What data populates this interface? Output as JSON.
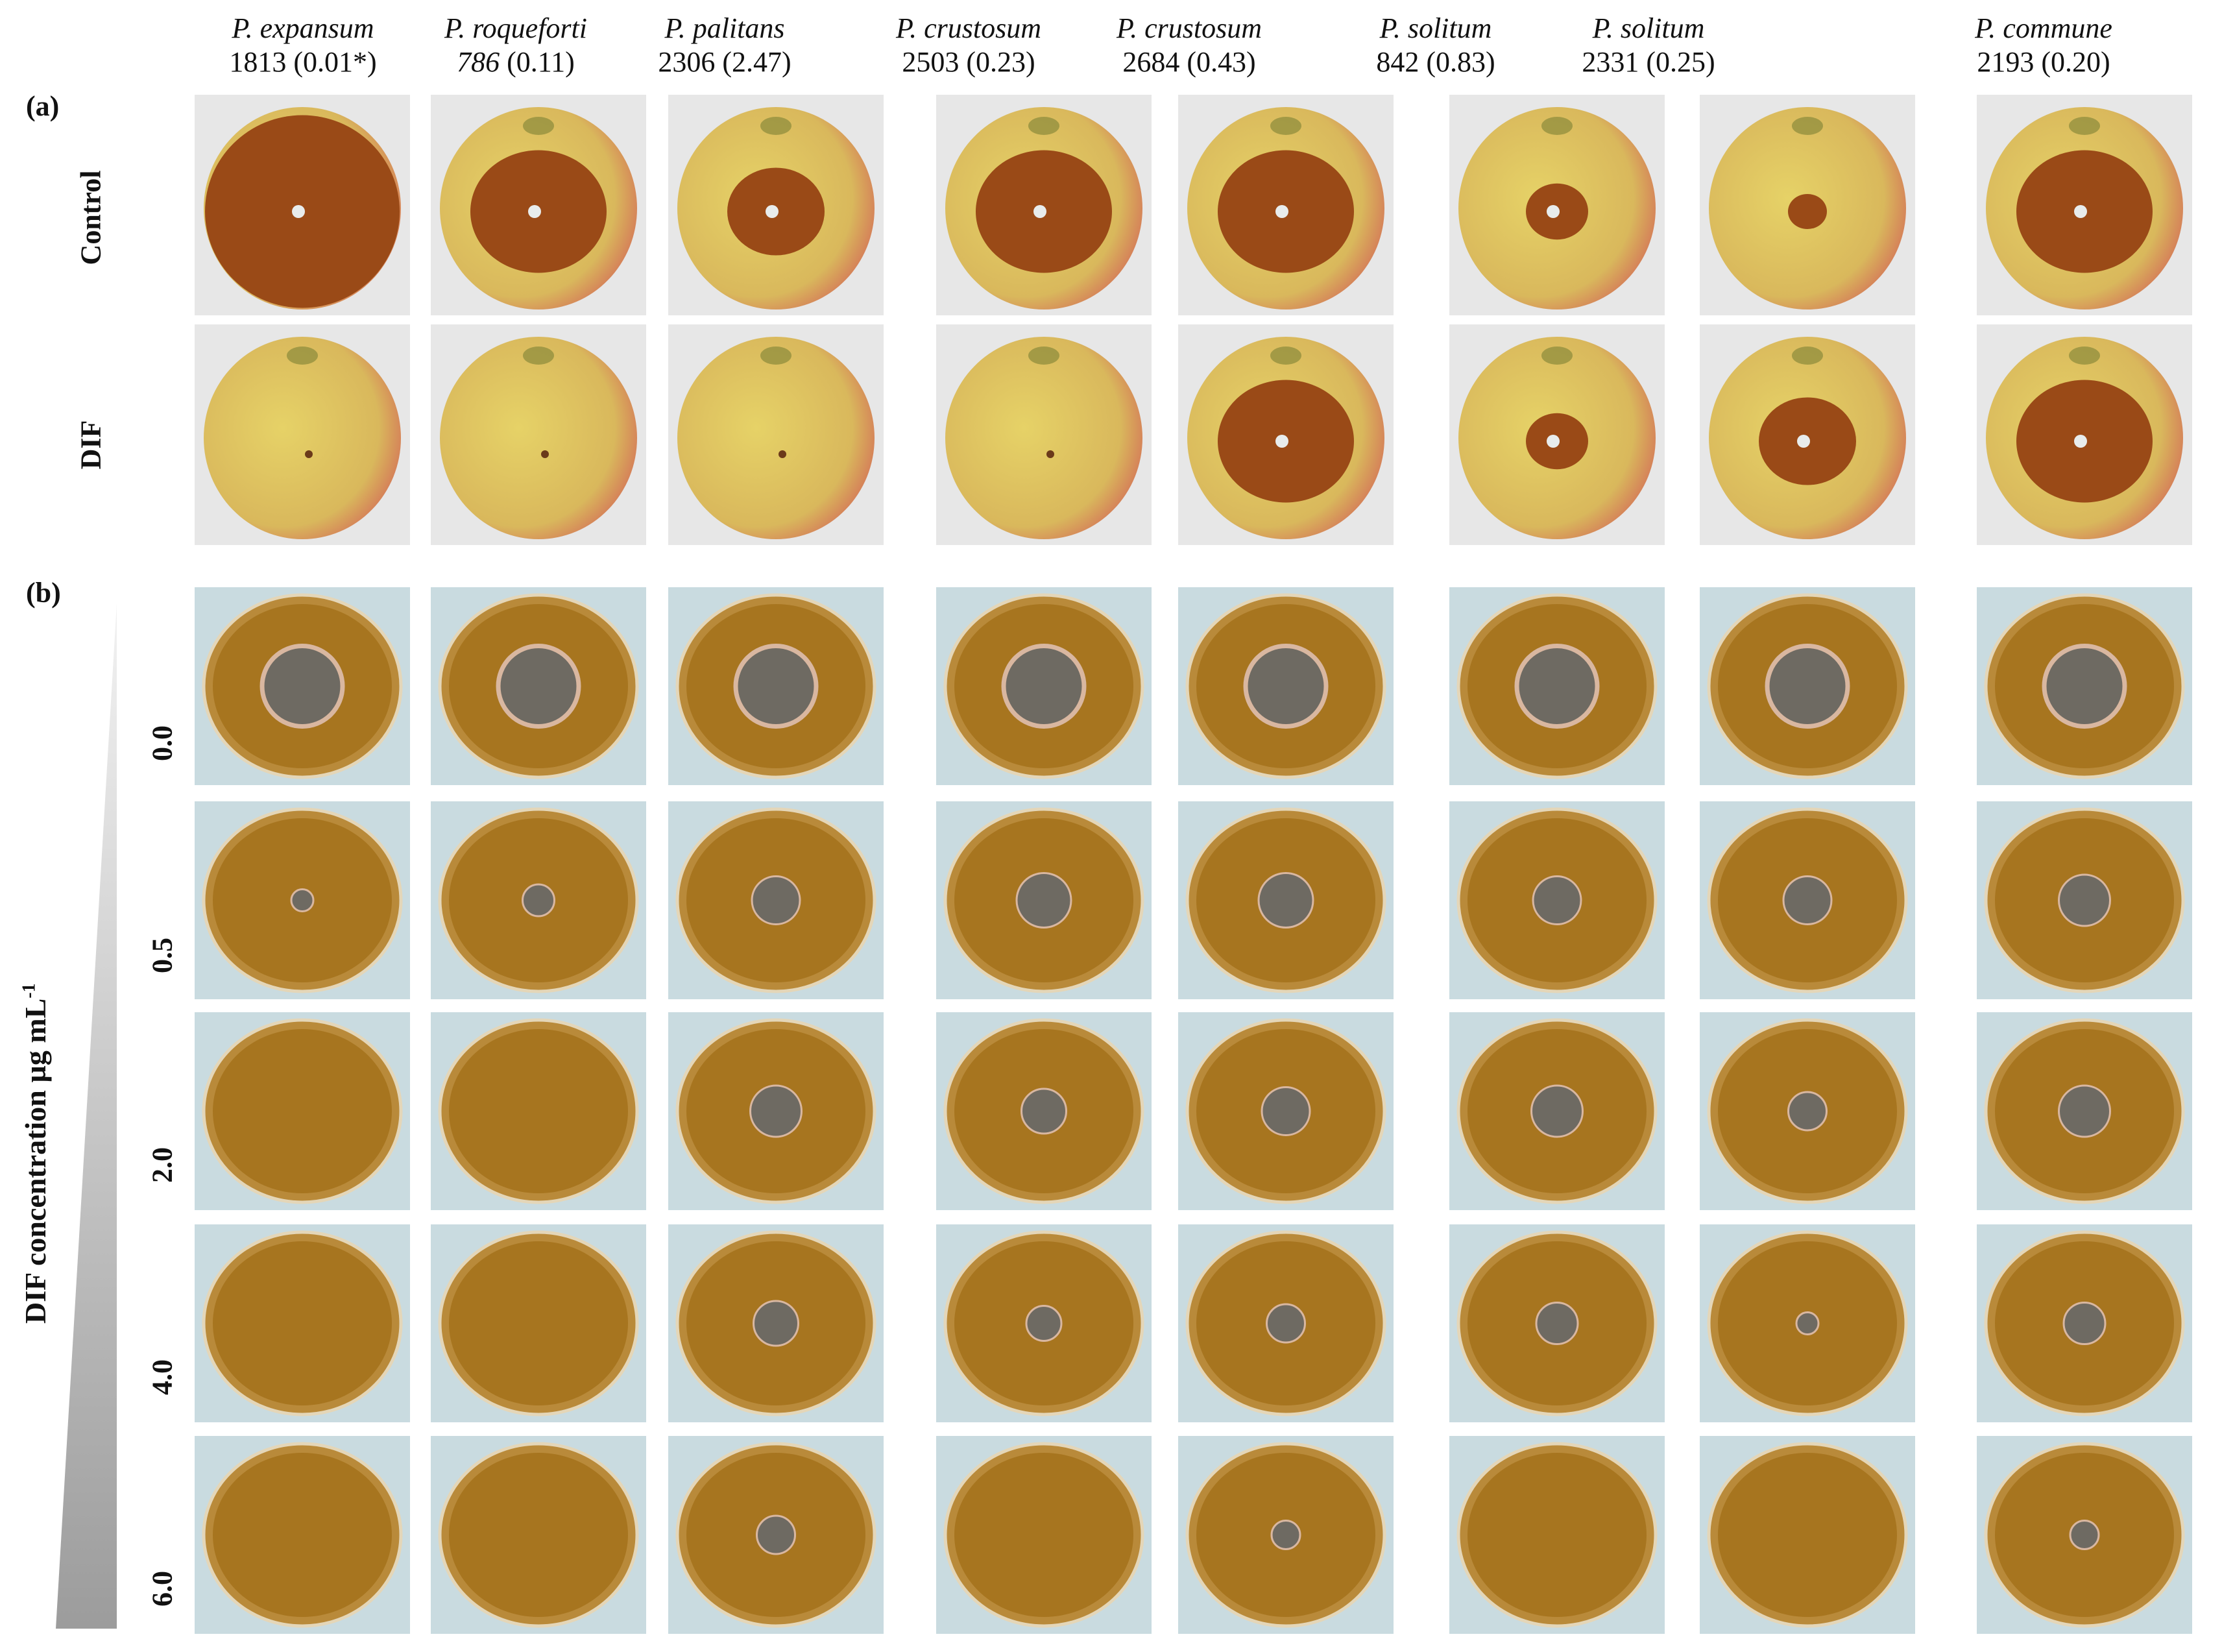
{
  "panels": {
    "a": "(a)",
    "b": "(b)"
  },
  "columns": [
    {
      "species": "P. expansum",
      "code": "1813",
      "value": "(0.01*)",
      "code_italic": false
    },
    {
      "species": "P. roqueforti",
      "code": "786",
      "value": "(0.11)",
      "code_italic": true
    },
    {
      "species": "P. palitans",
      "code": "2306",
      "value": "(2.47)",
      "code_italic": false
    },
    {
      "species": "P. crustosum",
      "code": "2503",
      "value": "(0.23)",
      "code_italic": false
    },
    {
      "species": "P. crustosum",
      "code": "2684",
      "value": "(0.43)",
      "code_italic": false
    },
    {
      "species": "P. solitum",
      "code": "842",
      "value": "(0.83)",
      "code_italic": false
    },
    {
      "species": "P. solitum",
      "code": "2331",
      "value": "(0.25)",
      "code_italic": false
    },
    {
      "species": "P. commune",
      "code": "2193",
      "value": "(0.20)",
      "code_italic": false
    }
  ],
  "apple_rows": [
    "Control",
    "DIF"
  ],
  "concentrations": [
    "0.0",
    "0.5",
    "2.0",
    "4.0",
    "6.0"
  ],
  "y_axis_label": {
    "text": "DIF concentration  µg mL",
    "sup": "-1"
  },
  "colors": {
    "rot": "#9a4a17",
    "apple_yellow": "#e6d267",
    "apple_red": "#d47258",
    "plate_agar": "#a7751f",
    "plate_bg": "#c8dbe0"
  },
  "apple_states": {
    "Control": [
      "full-rot",
      "large-rot",
      "medium-rot",
      "large-rot",
      "large-rot",
      "small-rot",
      "tiny-rot",
      "large-rot"
    ],
    "DIF": [
      "clean",
      "clean",
      "clean",
      "clean",
      "large-rot",
      "small-rot",
      "medium-rot",
      "large-rot"
    ]
  },
  "colony_growth": {
    "0.0": [
      1,
      1,
      1,
      1,
      1,
      1,
      1,
      1
    ],
    "0.5": [
      0.1,
      0.25,
      0.5,
      0.6,
      0.6,
      0.5,
      0.5,
      0.55
    ],
    "2.0": [
      0,
      0,
      0.55,
      0.45,
      0.5,
      0.55,
      0.35,
      0.55
    ],
    "4.0": [
      0,
      0,
      0.45,
      0.3,
      0.35,
      0.4,
      0.1,
      0.4
    ],
    "6.0": [
      0,
      0,
      0.35,
      0,
      0.2,
      0,
      0,
      0.2
    ]
  }
}
